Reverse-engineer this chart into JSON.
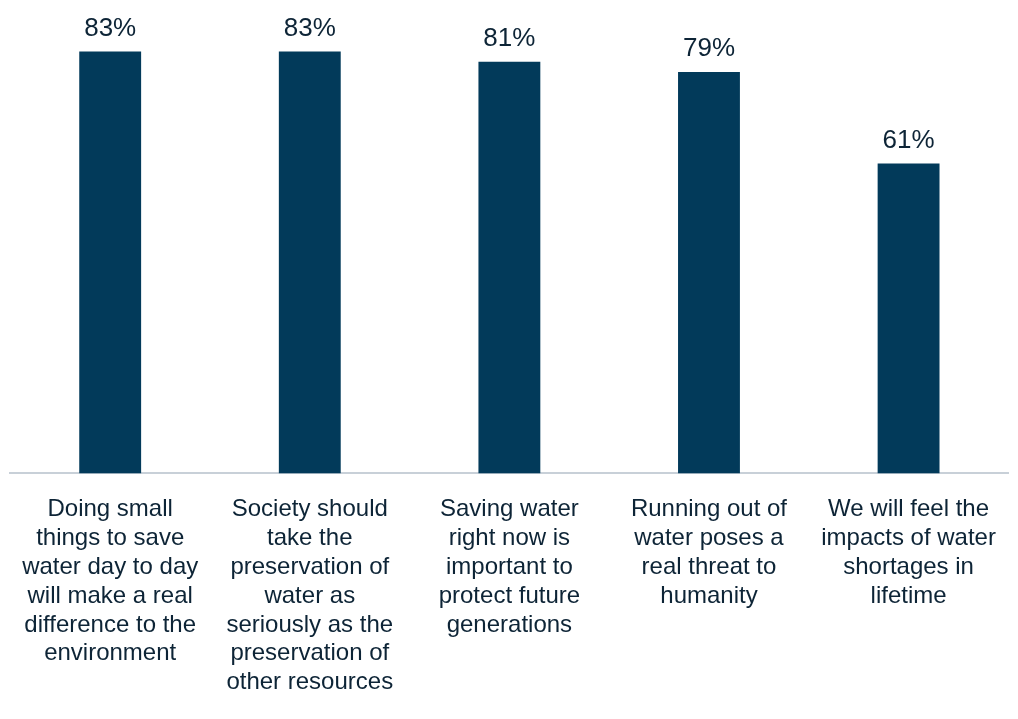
{
  "chart_data": {
    "type": "bar",
    "categories": [
      "Doing small things to save water day to day will make a real difference to the environment",
      "Society should take the preservation of water as seriously as the preservation of other resources",
      "Saving water right now is important to protect future generations",
      "Running out of water poses a real threat to humanity",
      "We will feel the impacts of water shortages in lifetime"
    ],
    "values": [
      83,
      83,
      81,
      79,
      61
    ],
    "value_labels": [
      "83%",
      "83%",
      "81%",
      "79%",
      "61%"
    ],
    "color": "#023a5a",
    "grid": false,
    "legend": false
  }
}
